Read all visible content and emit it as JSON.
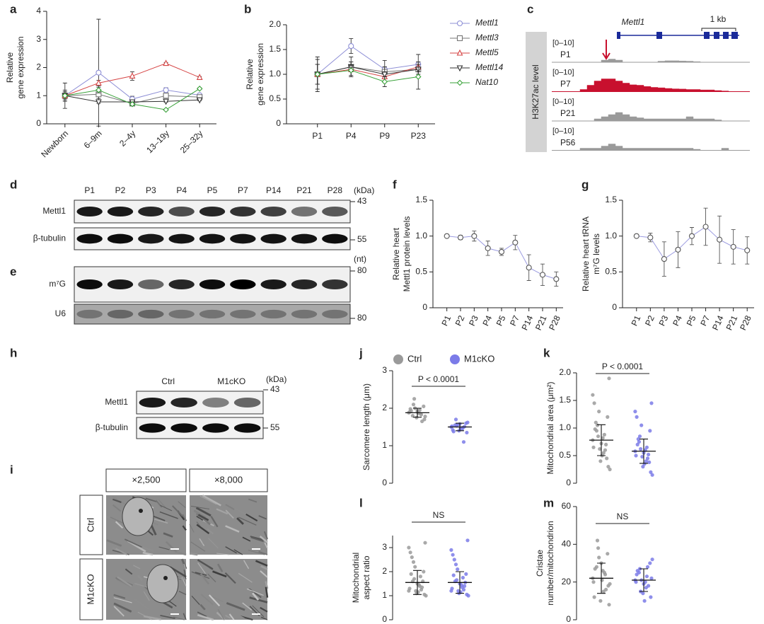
{
  "chart_data": [
    {
      "type": "line",
      "letter": "a",
      "ylabel": [
        "Relative",
        "gene expression"
      ],
      "categories": [
        "Newborn",
        "6–9m",
        "2–4y",
        "13–19y",
        "25–32y"
      ],
      "ylim": [
        0,
        4
      ],
      "yticks": [
        0,
        1,
        2,
        3,
        4
      ],
      "legend": "right",
      "series": [
        {
          "name": "Mettl1",
          "color": "#8e8fd6",
          "marker": "circle",
          "values": [
            1.0,
            1.82,
            0.88,
            1.2,
            1.02
          ],
          "errors": [
            0.15,
            1.9,
            0.1,
            0.08,
            0.05
          ]
        },
        {
          "name": "Mettl3",
          "color": "#777777",
          "marker": "square",
          "values": [
            1.0,
            1.05,
            0.72,
            1.0,
            0.95
          ],
          "errors": [
            0.1,
            0.15,
            0.08,
            0.05,
            0.05
          ]
        },
        {
          "name": "Mettl5",
          "color": "#d64545",
          "marker": "triangle",
          "values": [
            1.0,
            1.45,
            1.7,
            2.15,
            1.65
          ],
          "errors": [
            0.1,
            0.1,
            0.15,
            0.03,
            0.03
          ]
        },
        {
          "name": "Mettl14",
          "color": "#333333",
          "marker": "triangle-down",
          "values": [
            1.0,
            0.78,
            0.78,
            0.8,
            0.85
          ],
          "errors": [
            0.45,
            0.05,
            0.05,
            0.03,
            0.03
          ]
        },
        {
          "name": "Nat10",
          "color": "#3aa23a",
          "marker": "diamond",
          "values": [
            1.0,
            1.2,
            0.7,
            0.5,
            1.25
          ],
          "errors": [
            0.2,
            0.1,
            0.05,
            0.03,
            0.03
          ]
        }
      ]
    },
    {
      "type": "line",
      "letter": "b",
      "ylabel": [
        "Relative",
        "gene expression"
      ],
      "categories": [
        "P1",
        "P4",
        "P9",
        "P23"
      ],
      "ylim": [
        0,
        2
      ],
      "yticks": [
        0,
        0.5,
        {
          "value": 1,
          "label": "1.0"
        },
        1.5,
        {
          "value": 2,
          "label": "2.0"
        }
      ],
      "series": [
        {
          "color": "#8e8fd6",
          "marker": "circle",
          "values": [
            1.0,
            1.57,
            1.1,
            1.2
          ],
          "errors": [
            0.35,
            0.15,
            0.18,
            0.2
          ]
        },
        {
          "color": "#777777",
          "marker": "square",
          "values": [
            1.0,
            1.15,
            1.05,
            1.1
          ],
          "errors": [
            0.2,
            0.1,
            0.1,
            0.1
          ]
        },
        {
          "color": "#d64545",
          "marker": "triangle",
          "values": [
            1.0,
            1.1,
            0.95,
            1.15
          ],
          "errors": [
            0.2,
            0.15,
            0.1,
            0.1
          ]
        },
        {
          "color": "#333333",
          "marker": "triangle-down",
          "values": [
            1.0,
            1.15,
            1.0,
            1.1
          ],
          "errors": [
            0.3,
            0.2,
            0.15,
            0.15
          ]
        },
        {
          "color": "#3aa23a",
          "marker": "diamond",
          "values": [
            1.0,
            1.08,
            0.85,
            0.95
          ],
          "errors": [
            0.2,
            0.1,
            0.1,
            0.25
          ]
        }
      ]
    },
    {
      "type": "line",
      "letter": "f",
      "ylabel": [
        "Relative heart",
        "Mettl1 protein levels"
      ],
      "categories": [
        "P1",
        "P2",
        "P3",
        "P4",
        "P5",
        "P7",
        "P14",
        "P21",
        "P28"
      ],
      "ylim": [
        0,
        1.5
      ],
      "yticks": [
        0,
        0.5,
        {
          "value": 1,
          "label": "1.0"
        },
        1.5
      ],
      "series": [
        {
          "color": "#9b9be0",
          "marker_color": "#555555",
          "marker": "circle",
          "values": [
            1.0,
            0.98,
            1.0,
            0.83,
            0.78,
            0.91,
            0.56,
            0.46,
            0.4
          ],
          "errors": [
            0,
            0.03,
            0.07,
            0.1,
            0.05,
            0.1,
            0.18,
            0.15,
            0.1
          ]
        }
      ]
    },
    {
      "type": "line",
      "letter": "g",
      "ylabel": [
        "Relative heart tRNA",
        "m⁷G levels"
      ],
      "categories": [
        "P1",
        "P2",
        "P3",
        "P4",
        "P5",
        "P7",
        "P14",
        "P21",
        "P28"
      ],
      "ylim": [
        0,
        1.5
      ],
      "yticks": [
        0,
        0.5,
        {
          "value": 1,
          "label": "1.0"
        },
        1.5
      ],
      "series": [
        {
          "color": "#9b9be0",
          "marker_color": "#555555",
          "marker": "circle",
          "values": [
            1.0,
            0.98,
            0.68,
            0.81,
            1.0,
            1.13,
            0.95,
            0.85,
            0.8
          ],
          "errors": [
            0,
            0.06,
            0.24,
            0.25,
            0.12,
            0.26,
            0.33,
            0.24,
            0.19
          ]
        }
      ]
    },
    {
      "type": "strip",
      "letter": "j",
      "ylabel": [
        "Sarcomere length (μm)"
      ],
      "annotation": "P < 0.0001",
      "legend": "top",
      "ylim": [
        0,
        3
      ],
      "yticks": [
        0,
        1,
        2,
        3
      ],
      "series": [
        {
          "name": "Ctrl",
          "color": "#9a9a9a",
          "mean": 1.88,
          "sd": 0.12,
          "values": [
            1.88,
            1.95,
            1.8,
            2.05,
            1.75,
            1.9,
            1.85,
            2.1,
            1.7,
            1.92,
            1.98,
            1.83,
            2.25,
            1.78,
            1.87,
            1.93,
            1.65,
            2.0
          ]
        },
        {
          "name": "M1cKO",
          "color": "#7b7be8",
          "mean": 1.5,
          "sd": 0.1,
          "values": [
            1.5,
            1.45,
            1.55,
            1.6,
            1.4,
            1.52,
            1.48,
            1.7,
            1.35,
            1.58,
            1.42,
            1.1,
            1.53,
            1.62,
            1.47,
            1.38,
            1.51,
            1.56
          ]
        }
      ]
    },
    {
      "type": "strip",
      "letter": "k",
      "ylabel": [
        "Mitochondrial area (μm²)"
      ],
      "annotation": "P < 0.0001",
      "ylim": [
        0,
        2
      ],
      "yticks": [
        0,
        0.5,
        {
          "value": 1,
          "label": "1.0"
        },
        1.5,
        {
          "value": 2,
          "label": "2.0"
        }
      ],
      "series": [
        {
          "color": "#9a9a9a",
          "mean": 0.78,
          "sd": 0.28,
          "values": [
            0.78,
            0.55,
            0.95,
            1.2,
            0.4,
            0.65,
            0.88,
            1.05,
            0.3,
            0.72,
            1.45,
            0.6,
            0.85,
            1.9,
            0.5,
            0.98,
            0.7,
            1.3,
            0.25,
            0.82,
            1.1,
            0.45,
            0.62,
            1.6
          ]
        },
        {
          "color": "#7b7be8",
          "mean": 0.58,
          "sd": 0.22,
          "values": [
            0.58,
            0.4,
            0.75,
            0.95,
            0.3,
            0.5,
            0.65,
            0.85,
            0.2,
            0.55,
            1.2,
            0.45,
            0.62,
            1.45,
            0.35,
            0.7,
            0.52,
            1.05,
            0.15,
            0.6,
            0.8,
            0.38,
            0.48,
            1.3
          ]
        }
      ]
    },
    {
      "type": "strip",
      "letter": "l",
      "ylabel": [
        "Mitochondrial",
        "aspect ratio"
      ],
      "annotation": "NS",
      "ylim": [
        0,
        3.5
      ],
      "yticks": [
        0,
        1,
        2,
        3
      ],
      "series": [
        {
          "color": "#9a9a9a",
          "mean": 1.55,
          "sd": 0.5,
          "values": [
            1.2,
            1.4,
            1.6,
            2.0,
            1.1,
            1.3,
            1.8,
            2.4,
            1.05,
            1.5,
            2.8,
            1.25,
            1.7,
            3.2,
            1.15,
            1.9,
            1.35,
            2.2,
            1.0,
            1.45,
            2.6,
            1.6,
            1.2,
            3.0
          ]
        },
        {
          "color": "#7b7be8",
          "mean": 1.55,
          "sd": 0.45,
          "values": [
            1.2,
            1.35,
            1.6,
            1.9,
            1.1,
            1.3,
            1.75,
            2.3,
            1.05,
            1.5,
            2.7,
            1.25,
            1.65,
            3.3,
            1.15,
            1.85,
            1.4,
            2.1,
            1.0,
            1.45,
            2.5,
            1.55,
            1.2,
            2.9
          ]
        }
      ]
    },
    {
      "type": "strip",
      "letter": "m",
      "ylabel": [
        "Cristae",
        "number/mitochondrion"
      ],
      "annotation": "NS",
      "ylim": [
        0,
        60
      ],
      "yticks": [
        0,
        20,
        40,
        60
      ],
      "series": [
        {
          "color": "#9a9a9a",
          "mean": 22,
          "sd": 8,
          "values": [
            22,
            15,
            28,
            35,
            10,
            20,
            25,
            42,
            18,
            30,
            12,
            24,
            38,
            8,
            21,
            27,
            16,
            33,
            19,
            26
          ]
        },
        {
          "color": "#7b7be8",
          "mean": 21,
          "sd": 6,
          "values": [
            21,
            17,
            25,
            30,
            14,
            20,
            23,
            27,
            12,
            19,
            24,
            28,
            15,
            22,
            10,
            26,
            18,
            21,
            32,
            20
          ]
        }
      ]
    }
  ],
  "genome_track": {
    "letter": "c",
    "gene": "Mettl1",
    "scale_bar": "1 kb",
    "ylabel": "H3K27ac level",
    "tracks": [
      {
        "range": "[0–10]",
        "label": "P1",
        "color": "#9a9a9a"
      },
      {
        "range": "[0–10]",
        "label": "P7",
        "color": "#c8102e"
      },
      {
        "range": "[0–10]",
        "label": "P21",
        "color": "#9a9a9a"
      },
      {
        "range": "[0–10]",
        "label": "P56",
        "color": "#9a9a9a"
      }
    ]
  },
  "blots": [
    {
      "letter": "d",
      "units": "(kDa)",
      "lanes": [
        "P1",
        "P2",
        "P3",
        "P4",
        "P5",
        "P7",
        "P14",
        "P21",
        "P28"
      ],
      "rows": [
        {
          "label": "Mettl1",
          "marker": 43
        },
        {
          "label": "β-tubulin",
          "marker": 55
        }
      ]
    },
    {
      "letter": "e",
      "units": "(nt)",
      "rows": [
        {
          "label": "m⁷G",
          "marker": 80
        },
        {
          "label": "U6",
          "marker": 80
        }
      ]
    },
    {
      "letter": "h",
      "units": "(kDa)",
      "lanes": [
        "Ctrl",
        "M1cKO"
      ],
      "rows": [
        {
          "label": "Mettl1",
          "marker": 43
        },
        {
          "label": "β-tubulin",
          "marker": 55
        }
      ]
    }
  ],
  "micrographs": {
    "letter": "i",
    "magnifications": [
      "×2,500",
      "×8,000"
    ],
    "groups": [
      "Ctrl",
      "M1cKO"
    ]
  }
}
